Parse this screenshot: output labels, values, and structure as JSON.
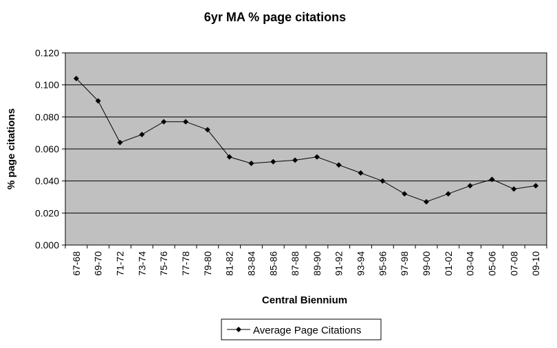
{
  "chart_data": {
    "type": "line",
    "title": "6yr MA % page citations",
    "xlabel": "Central Biennium",
    "ylabel": "% page citations",
    "categories": [
      "67-68",
      "69-70",
      "71-72",
      "73-74",
      "75-76",
      "77-78",
      "79-80",
      "81-82",
      "83-84",
      "85-86",
      "87-88",
      "89-90",
      "91-92",
      "93-94",
      "95-96",
      "97-98",
      "99-00",
      "01-02",
      "03-04",
      "05-06",
      "07-08",
      "09-10"
    ],
    "series": [
      {
        "name": "Average Page Citations",
        "values": [
          0.104,
          0.09,
          0.064,
          0.069,
          0.077,
          0.077,
          0.072,
          0.055,
          0.051,
          0.052,
          0.053,
          0.055,
          0.05,
          0.045,
          0.04,
          0.032,
          0.027,
          0.032,
          0.037,
          0.041,
          0.035,
          0.037
        ]
      }
    ],
    "ylim": [
      0,
      0.12
    ],
    "yticks": [
      "0.000",
      "0.020",
      "0.040",
      "0.060",
      "0.080",
      "0.100",
      "0.120"
    ],
    "grid": true,
    "legend": "bottom",
    "colors": {
      "plot_background": "#c0c0c0",
      "line": "#000000",
      "gridline": "#000000"
    }
  }
}
